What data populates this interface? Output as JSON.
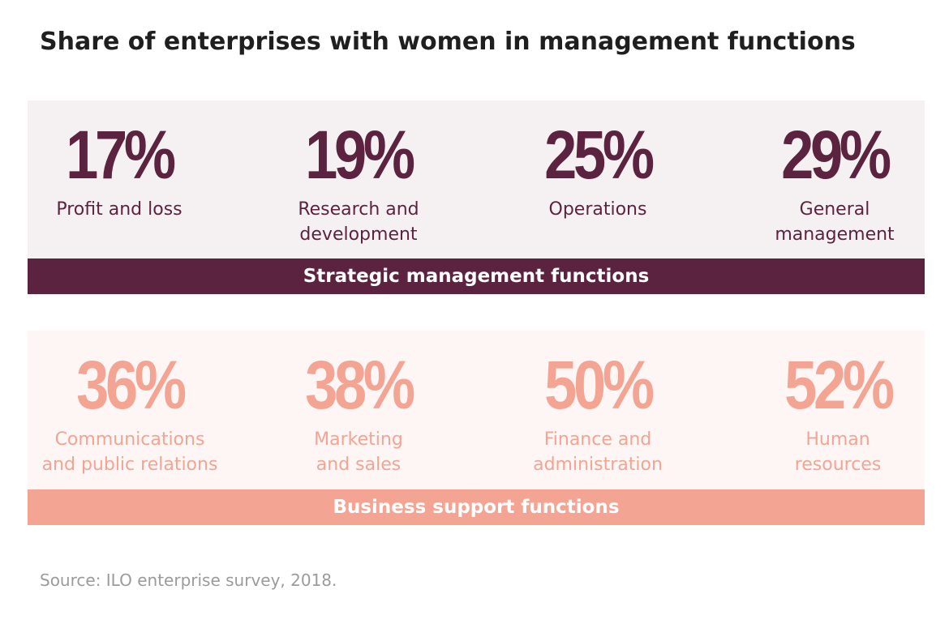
{
  "title": "Share of enterprises with women in management functions",
  "strategic": {
    "band_label": "Strategic management functions",
    "color": "#5c2340",
    "items": [
      {
        "value": "17%",
        "label_line1": "Profit and loss",
        "label_line2": ""
      },
      {
        "value": "19%",
        "label_line1": "Research and",
        "label_line2": "development"
      },
      {
        "value": "25%",
        "label_line1": "Operations",
        "label_line2": ""
      },
      {
        "value": "29%",
        "label_line1": "General",
        "label_line2": "management"
      }
    ]
  },
  "support": {
    "band_label": "Business support functions",
    "color": "#f3a493",
    "items": [
      {
        "value": "36%",
        "label_line1": "Communications",
        "label_line2": "and public relations"
      },
      {
        "value": "38%",
        "label_line1": "Marketing",
        "label_line2": "and sales"
      },
      {
        "value": "50%",
        "label_line1": "Finance and",
        "label_line2": "administration"
      },
      {
        "value": "52%",
        "label_line1": "Human",
        "label_line2": "resources"
      }
    ]
  },
  "source": "Source: ILO enterprise survey, 2018."
}
